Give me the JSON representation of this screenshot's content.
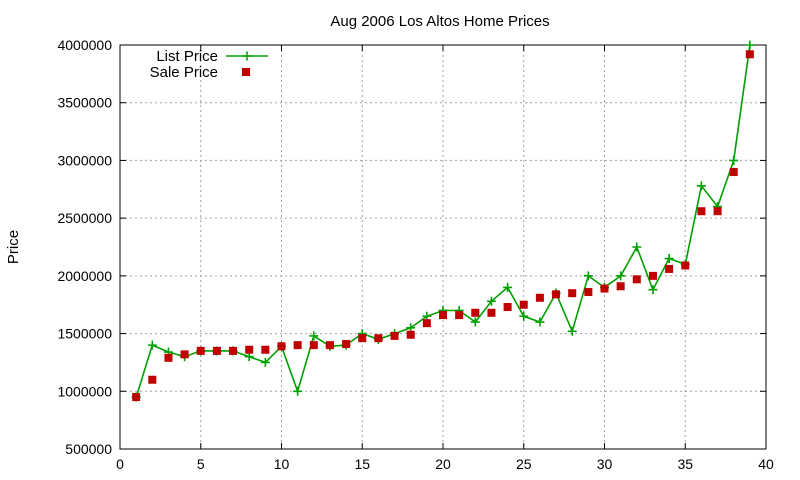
{
  "chart_data": {
    "type": "line",
    "title": "Aug 2006 Los Altos Home Prices",
    "xlabel": "",
    "ylabel": "Price",
    "xlim": [
      0,
      40
    ],
    "ylim": [
      500000,
      4000000
    ],
    "xticks": [
      "0",
      "5",
      "10",
      "15",
      "20",
      "25",
      "30",
      "35",
      "40"
    ],
    "yticks": [
      "500000",
      "1000000",
      "1500000",
      "2000000",
      "2500000",
      "3000000",
      "3500000",
      "4000000"
    ],
    "grid": true,
    "legend_position": "top-left",
    "series": [
      {
        "name": "List Price",
        "style": "line-plus",
        "color": "#00a000",
        "x": [
          1,
          2,
          3,
          4,
          5,
          6,
          7,
          8,
          9,
          10,
          11,
          12,
          13,
          14,
          15,
          16,
          17,
          18,
          19,
          20,
          21,
          22,
          23,
          24,
          25,
          26,
          27,
          28,
          29,
          30,
          31,
          32,
          33,
          34,
          35,
          36,
          37,
          38,
          39
        ],
        "y": [
          950000,
          1400000,
          1340000,
          1300000,
          1350000,
          1350000,
          1350000,
          1300000,
          1250000,
          1390000,
          1000000,
          1480000,
          1390000,
          1400000,
          1500000,
          1450000,
          1500000,
          1550000,
          1650000,
          1700000,
          1700000,
          1600000,
          1780000,
          1900000,
          1650000,
          1600000,
          1850000,
          1520000,
          2000000,
          1900000,
          2000000,
          2250000,
          1880000,
          2150000,
          2100000,
          2780000,
          2600000,
          3000000,
          4000000
        ]
      },
      {
        "name": "Sale Price",
        "style": "square",
        "color": "#c00000",
        "x": [
          1,
          2,
          3,
          4,
          5,
          6,
          7,
          8,
          9,
          10,
          11,
          12,
          13,
          14,
          15,
          16,
          17,
          18,
          19,
          20,
          21,
          22,
          23,
          24,
          25,
          26,
          27,
          28,
          29,
          30,
          31,
          32,
          33,
          34,
          35,
          36,
          37,
          38,
          39
        ],
        "y": [
          950000,
          1100000,
          1290000,
          1320000,
          1350000,
          1350000,
          1350000,
          1360000,
          1360000,
          1390000,
          1400000,
          1400000,
          1400000,
          1410000,
          1460000,
          1460000,
          1480000,
          1490000,
          1590000,
          1660000,
          1660000,
          1680000,
          1680000,
          1730000,
          1750000,
          1810000,
          1840000,
          1850000,
          1860000,
          1890000,
          1910000,
          1970000,
          2000000,
          2060000,
          2090000,
          2560000,
          2560000,
          2900000,
          3920000
        ]
      }
    ]
  }
}
